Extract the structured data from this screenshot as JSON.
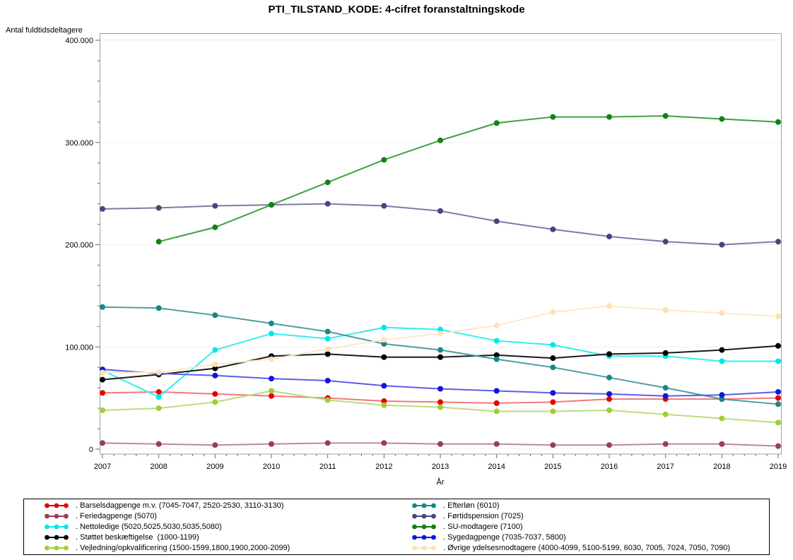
{
  "chart_data": {
    "type": "line",
    "title": "PTI_TILSTAND_KODE: 4-cifret foranstaltningskode",
    "xlabel": "År",
    "ylabel": "Antal fuldtidsdeltagere",
    "x": [
      2007,
      2008,
      2009,
      2010,
      2011,
      2012,
      2013,
      2014,
      2015,
      2016,
      2017,
      2018,
      2019
    ],
    "ylim": [
      0,
      400000
    ],
    "y_major_step": 100000,
    "y_minor_step": 20000,
    "y_tick_labels": [
      "0",
      "100.000",
      "200.000",
      "300.000",
      "400.000"
    ],
    "grid": "horizontal",
    "legend_position": "bottom",
    "series": [
      {
        "id": "barselsdagpenge",
        "label": ". Barselsdagpenge m.v. (7045-7047, 2520-2530, 3110-3130)",
        "color": "#E60000",
        "line_color": "#F07A7A",
        "values": [
          55000,
          56000,
          54000,
          52000,
          50000,
          47000,
          46000,
          45000,
          46000,
          49000,
          49000,
          49000,
          50000
        ]
      },
      {
        "id": "feriedagpenge",
        "label": ". Feriedagpenge (5070)",
        "color": "#993F4F",
        "line_color": "#C08A94",
        "values": [
          6000,
          5000,
          4000,
          5000,
          6000,
          6000,
          5000,
          5000,
          4000,
          4000,
          5000,
          5000,
          3000
        ]
      },
      {
        "id": "nettoledige",
        "label": ". Nettoledige (5020,5025,5030,5035,5080)",
        "color": "#00E8E8",
        "line_color": "#33EDED",
        "values": [
          77000,
          51000,
          97000,
          113000,
          108000,
          119000,
          117000,
          106000,
          102000,
          91000,
          91000,
          86000,
          86000
        ]
      },
      {
        "id": "stoettet-beskaeftigelse",
        "label": ". Støttet beskæftigelse  (1000-1199)",
        "color": "#000000",
        "line_color": "#1A1A1A",
        "values": [
          68000,
          73000,
          79000,
          91000,
          93000,
          90000,
          90000,
          92000,
          89000,
          93000,
          94000,
          97000,
          101000
        ]
      },
      {
        "id": "vejledning-opkvalificering",
        "label": ". Vejledning/opkvalificering (1500-1599,1800,1900,2000-2099)",
        "color": "#9FCE36",
        "line_color": "#BCDC7E",
        "values": [
          38000,
          40000,
          46000,
          57000,
          48000,
          43000,
          41000,
          37000,
          37000,
          38000,
          34000,
          30000,
          26000
        ]
      },
      {
        "id": "efterloen",
        "label": ". Efterløn (6010)",
        "color": "#178787",
        "line_color": "#4F9E9E",
        "values": [
          139000,
          138000,
          131000,
          123000,
          115000,
          103000,
          97000,
          88000,
          80000,
          70000,
          60000,
          49000,
          44000
        ]
      },
      {
        "id": "foertidspension",
        "label": ". Førtidspension (7025)",
        "color": "#46467E",
        "line_color": "#7C7CA5",
        "values": [
          235000,
          236000,
          238000,
          239000,
          240000,
          238000,
          233000,
          223000,
          215000,
          208000,
          203000,
          200000,
          203000
        ]
      },
      {
        "id": "su-modtagere",
        "label": ". SU-modtagere (7100)",
        "color": "#128212",
        "line_color": "#3FA03F",
        "values": [
          null,
          203000,
          217000,
          239000,
          261000,
          283000,
          302000,
          319000,
          325000,
          325000,
          326000,
          323000,
          320000
        ]
      },
      {
        "id": "sygedagpenge",
        "label": ". Sygedagpenge (7035-7037, 5800)",
        "color": "#1414DC",
        "line_color": "#5C5CEE",
        "values": [
          78000,
          74000,
          72000,
          69000,
          67000,
          62000,
          59000,
          57000,
          55000,
          54000,
          52000,
          53000,
          56000
        ]
      },
      {
        "id": "oevrige-ydelsesmodtagere",
        "label": ". Øvrige ydelsesmodtagere (4000-4099, 5100-5199, 6030, 7005, 7024, 7050, 7090)",
        "color": "#FFE0B3",
        "line_color": "#FFE8C9",
        "values": [
          75000,
          75000,
          83000,
          88000,
          98000,
          107000,
          113000,
          121000,
          134000,
          140000,
          136000,
          133000,
          130000
        ]
      }
    ]
  }
}
